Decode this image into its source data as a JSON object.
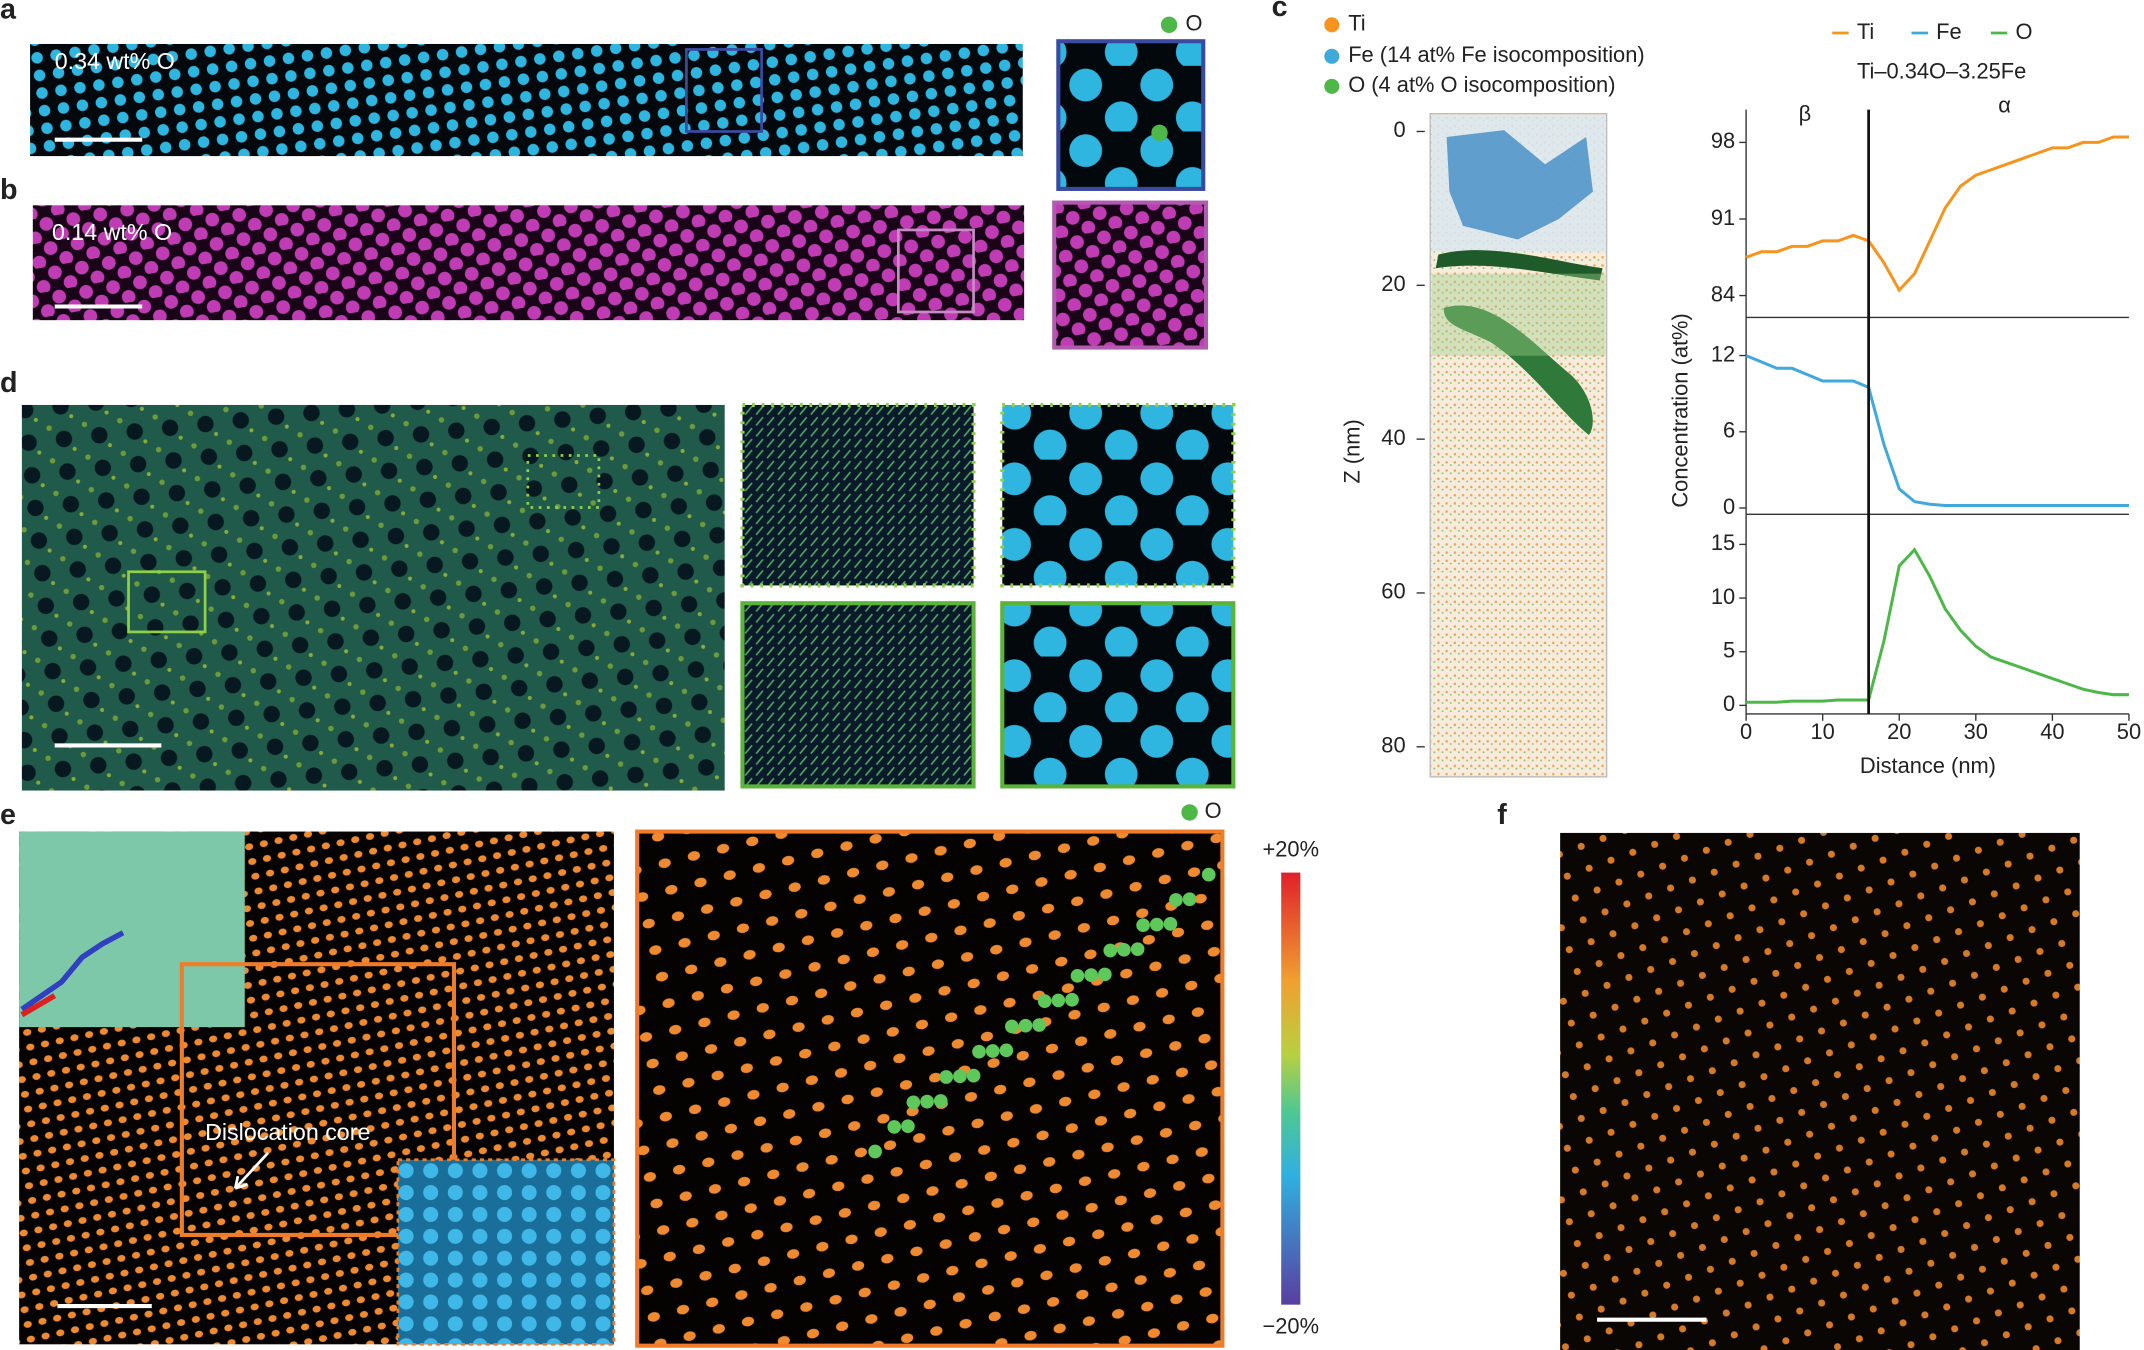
{
  "panel_labels": [
    "a",
    "b",
    "c",
    "d",
    "e",
    "f"
  ],
  "panel_a": {
    "label": "0.34 wt% O",
    "legend": "O"
  },
  "panel_b": {
    "label": "0.14 wt% O"
  },
  "panel_c": {
    "legend": [
      "Ti",
      "Fe (14 at% Fe isocomposition)",
      "O (4 at% O isocomposition)"
    ],
    "zlabel": "Z (nm)",
    "zlim": [
      0,
      80
    ],
    "zticks": [
      0,
      20,
      40,
      60,
      80
    ]
  },
  "panel_e": {
    "annotation": "Dislocation core",
    "legend": "O",
    "colorbar": {
      "max_label": "+20%",
      "min_label": "−20%"
    }
  },
  "chart_data": [
    {
      "type": "line",
      "subtitle": "Ti–0.34O–3.25Fe",
      "annotations": [
        "β",
        "α"
      ],
      "boundary_x": 16,
      "x": [
        0,
        2,
        4,
        6,
        8,
        10,
        12,
        14,
        16,
        18,
        20,
        22,
        24,
        26,
        28,
        30,
        32,
        34,
        36,
        38,
        40,
        42,
        44,
        46,
        48,
        50
      ],
      "series": [
        {
          "name": "Ti",
          "color": "#f7941d",
          "values": [
            87.5,
            88,
            88,
            88.5,
            88.5,
            89,
            89,
            89.5,
            89,
            87,
            84.5,
            86,
            89,
            92,
            94,
            95,
            95.5,
            96,
            96.5,
            97,
            97.5,
            97.5,
            98,
            98,
            98.5,
            98.5
          ]
        }
      ],
      "ylim": [
        82,
        101
      ],
      "yticks": [
        84,
        91,
        98
      ]
    },
    {
      "type": "line",
      "ylabel": "Concentration (at%)",
      "x": [
        0,
        2,
        4,
        6,
        8,
        10,
        12,
        14,
        16,
        18,
        20,
        22,
        24,
        26,
        28,
        30,
        32,
        34,
        36,
        38,
        40,
        42,
        44,
        46,
        48,
        50
      ],
      "series": [
        {
          "name": "Fe",
          "color": "#3fa9dc",
          "values": [
            12,
            11.5,
            11,
            11,
            10.5,
            10,
            10,
            10,
            9.5,
            5,
            1.5,
            0.5,
            0.3,
            0.2,
            0.2,
            0.2,
            0.2,
            0.2,
            0.2,
            0.2,
            0.2,
            0.2,
            0.2,
            0.2,
            0.2,
            0.2
          ]
        }
      ],
      "ylim": [
        -0.5,
        15
      ],
      "yticks": [
        0,
        6,
        12
      ]
    },
    {
      "type": "line",
      "xlabel": "Distance (nm)",
      "x": [
        0,
        2,
        4,
        6,
        8,
        10,
        12,
        14,
        16,
        18,
        20,
        22,
        24,
        26,
        28,
        30,
        32,
        34,
        36,
        38,
        40,
        42,
        44,
        46,
        48,
        50
      ],
      "series": [
        {
          "name": "O",
          "color": "#4db848",
          "values": [
            0.3,
            0.3,
            0.3,
            0.4,
            0.4,
            0.4,
            0.5,
            0.5,
            0.5,
            6,
            13,
            14.5,
            12,
            9,
            7,
            5.5,
            4.5,
            4,
            3.5,
            3,
            2.5,
            2,
            1.5,
            1.2,
            1,
            1
          ]
        }
      ],
      "ylim": [
        -0.8,
        17.8
      ],
      "yticks": [
        0,
        5,
        10,
        15
      ],
      "xlim": [
        0,
        50
      ],
      "xticks": [
        0,
        10,
        20,
        30,
        40,
        50
      ]
    }
  ]
}
